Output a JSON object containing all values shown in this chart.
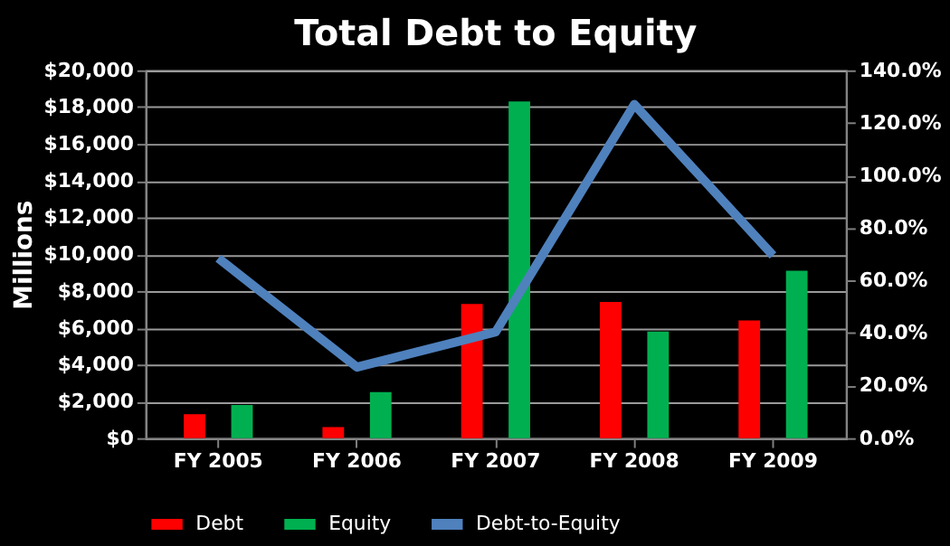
{
  "chart_data": {
    "type": "bar",
    "title": "Total Debt to Equity",
    "ylabel": "Millions",
    "categories": [
      "FY 2005",
      "FY 2006",
      "FY 2007",
      "FY 2008",
      "FY 2009"
    ],
    "series": [
      {
        "name": "Debt",
        "color": "#ff0000",
        "values": [
          1300,
          600,
          7300,
          7400,
          6400
        ]
      },
      {
        "name": "Equity",
        "color": "#00b050",
        "values": [
          1800,
          2500,
          18300,
          5800,
          9100
        ]
      },
      {
        "name": "Debt-to-Equity",
        "type": "line",
        "axis": "y2",
        "color": "#4f81bd",
        "values": [
          68.5,
          27,
          40.4,
          127,
          69.5
        ]
      }
    ],
    "ylim": [
      0,
      20000
    ],
    "yticks": [
      {
        "value": 0,
        "label": "$0"
      },
      {
        "value": 2000,
        "label": "$2,000"
      },
      {
        "value": 4000,
        "label": "$4,000"
      },
      {
        "value": 6000,
        "label": "$6,000"
      },
      {
        "value": 8000,
        "label": "$8,000"
      },
      {
        "value": 10000,
        "label": "$10,000"
      },
      {
        "value": 12000,
        "label": "$12,000"
      },
      {
        "value": 14000,
        "label": "$14,000"
      },
      {
        "value": 16000,
        "label": "$16,000"
      },
      {
        "value": 18000,
        "label": "$18,000"
      },
      {
        "value": 20000,
        "label": "$20,000"
      }
    ],
    "y2lim": [
      0,
      140
    ],
    "y2ticks": [
      {
        "value": 0,
        "label": "0.0%"
      },
      {
        "value": 20,
        "label": "20.0%"
      },
      {
        "value": 40,
        "label": "40.0%"
      },
      {
        "value": 60,
        "label": "60.0%"
      },
      {
        "value": 80,
        "label": "80.0%"
      },
      {
        "value": 100,
        "label": "100.0%"
      },
      {
        "value": 120,
        "label": "120.0%"
      },
      {
        "value": 140,
        "label": "140.0%"
      }
    ],
    "grid": "y",
    "legend": "bottom"
  }
}
